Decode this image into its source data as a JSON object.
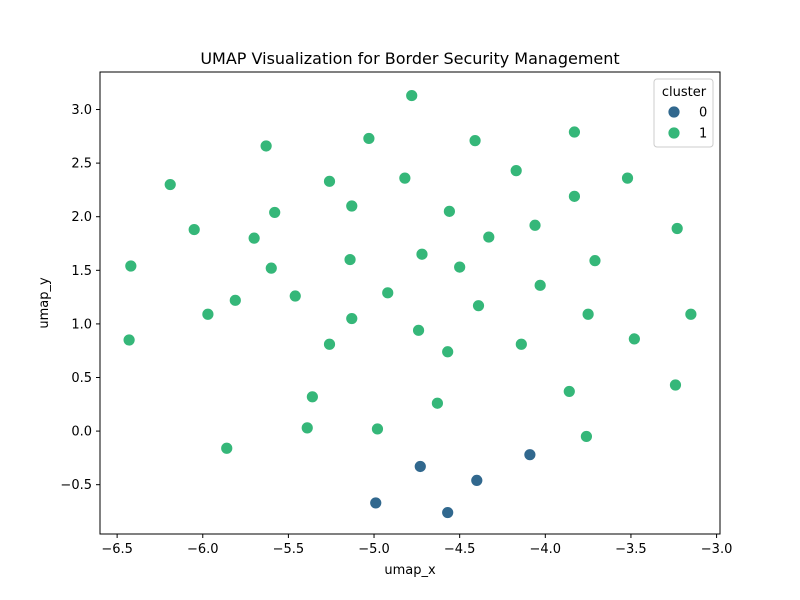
{
  "chart_data": {
    "type": "scatter",
    "title": "UMAP Visualization for Border Security Management",
    "xlabel": "umap_x",
    "ylabel": "umap_y",
    "xlim": [
      -6.6,
      -2.98
    ],
    "ylim": [
      -0.96,
      3.35
    ],
    "xticks": [
      -6.5,
      -6.0,
      -5.5,
      -5.0,
      -4.5,
      -4.0,
      -3.5,
      -3.0
    ],
    "xtick_labels": [
      "−6.5",
      "−6.0",
      "−5.5",
      "−5.0",
      "−4.5",
      "−4.0",
      "−3.5",
      "−3.0"
    ],
    "yticks": [
      -0.5,
      0.0,
      0.5,
      1.0,
      1.5,
      2.0,
      2.5,
      3.0
    ],
    "ytick_labels": [
      "−0.5",
      "0.0",
      "0.5",
      "1.0",
      "1.5",
      "2.0",
      "2.5",
      "3.0"
    ],
    "grid": false,
    "legend": {
      "title": "cluster",
      "placement": "top-right"
    },
    "series": [
      {
        "name": "0",
        "color": "#31688e",
        "points": [
          [
            -4.99,
            -0.67
          ],
          [
            -4.73,
            -0.33
          ],
          [
            -4.57,
            -0.76
          ],
          [
            -4.4,
            -0.46
          ],
          [
            -4.09,
            -0.22
          ]
        ]
      },
      {
        "name": "1",
        "color": "#35b779",
        "points": [
          [
            -4.78,
            3.13
          ],
          [
            -5.03,
            2.73
          ],
          [
            -4.41,
            2.71
          ],
          [
            -5.63,
            2.66
          ],
          [
            -3.83,
            2.79
          ],
          [
            -6.19,
            2.3
          ],
          [
            -4.82,
            2.36
          ],
          [
            -5.26,
            2.33
          ],
          [
            -4.17,
            2.43
          ],
          [
            -3.52,
            2.36
          ],
          [
            -5.58,
            2.04
          ],
          [
            -5.13,
            2.1
          ],
          [
            -4.56,
            2.05
          ],
          [
            -3.83,
            2.19
          ],
          [
            -4.06,
            1.92
          ],
          [
            -6.05,
            1.88
          ],
          [
            -5.7,
            1.8
          ],
          [
            -4.33,
            1.81
          ],
          [
            -3.23,
            1.89
          ],
          [
            -6.42,
            1.54
          ],
          [
            -5.6,
            1.52
          ],
          [
            -5.14,
            1.6
          ],
          [
            -4.72,
            1.65
          ],
          [
            -4.5,
            1.53
          ],
          [
            -3.71,
            1.59
          ],
          [
            -5.81,
            1.22
          ],
          [
            -5.46,
            1.26
          ],
          [
            -4.92,
            1.29
          ],
          [
            -4.39,
            1.17
          ],
          [
            -4.03,
            1.36
          ],
          [
            -5.97,
            1.09
          ],
          [
            -5.13,
            1.05
          ],
          [
            -4.74,
            0.94
          ],
          [
            -3.75,
            1.09
          ],
          [
            -3.15,
            1.09
          ],
          [
            -6.43,
            0.85
          ],
          [
            -5.26,
            0.81
          ],
          [
            -4.57,
            0.74
          ],
          [
            -4.14,
            0.81
          ],
          [
            -3.48,
            0.86
          ],
          [
            -5.36,
            0.32
          ],
          [
            -4.63,
            0.26
          ],
          [
            -3.86,
            0.37
          ],
          [
            -3.24,
            0.43
          ],
          [
            -5.39,
            0.03
          ],
          [
            -4.98,
            0.02
          ],
          [
            -3.76,
            -0.05
          ],
          [
            -5.86,
            -0.16
          ]
        ]
      }
    ]
  }
}
